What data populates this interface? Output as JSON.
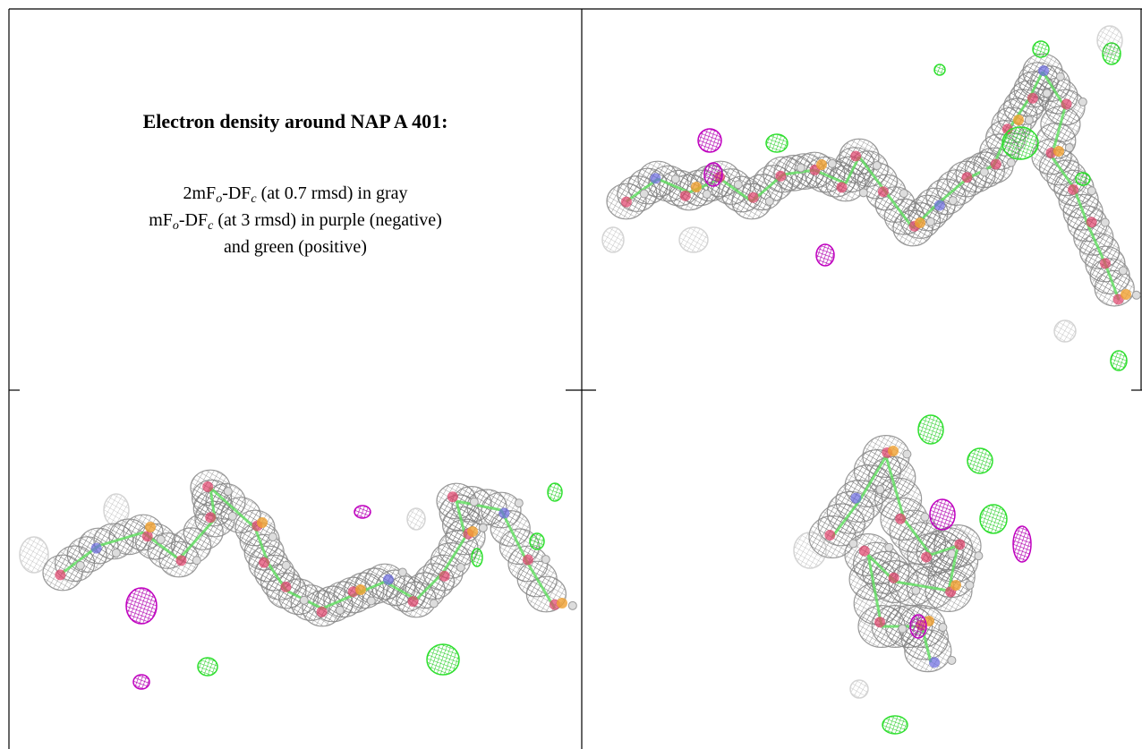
{
  "caption": {
    "title": "Electron density around NAP A 401:",
    "line1": [
      "2mF",
      "o",
      "-DF",
      "c",
      " (at 0.7 rmsd) in gray"
    ],
    "line2": [
      "mF",
      "o",
      "-DF",
      "c",
      " (at 3 rmsd) in purple (negative)"
    ],
    "line3": "and green (positive)"
  }
}
